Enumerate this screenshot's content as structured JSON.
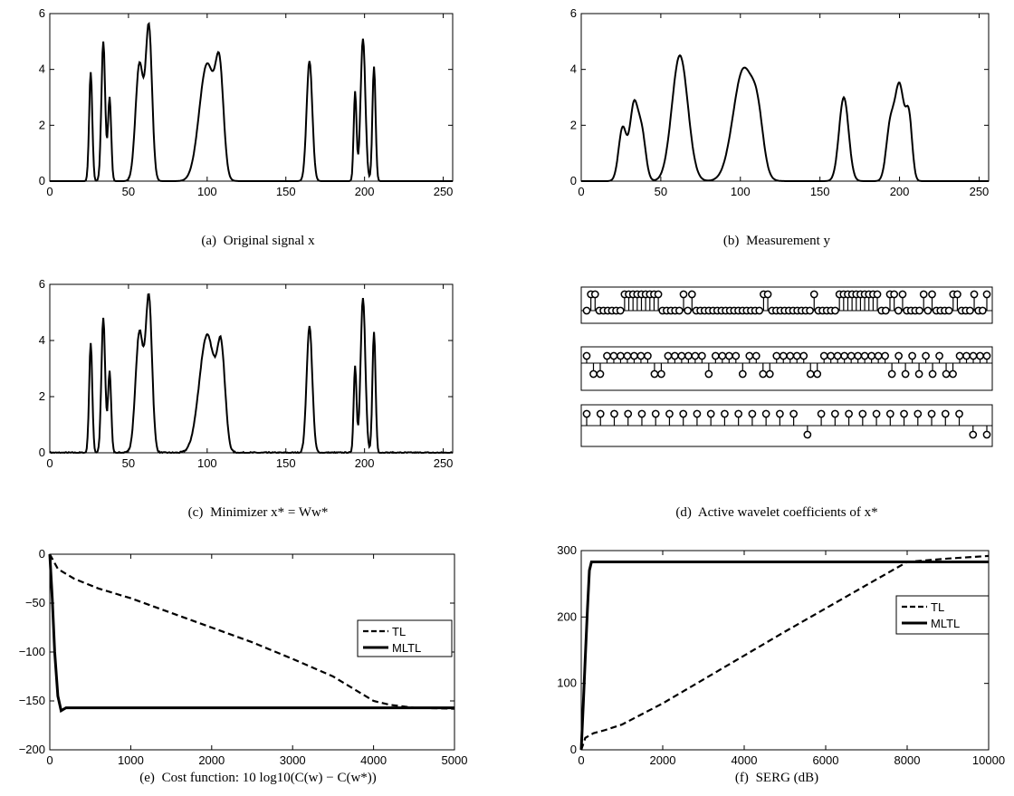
{
  "chart_data": [
    {
      "panel": "a",
      "type": "line",
      "caption": {
        "label": "(a)",
        "text": "Original signal x"
      },
      "xlim": [
        0,
        256
      ],
      "ylim": [
        0,
        6
      ],
      "xticks": [
        0,
        50,
        100,
        150,
        200,
        250
      ],
      "yticks": [
        0,
        2,
        4,
        6
      ],
      "series": [
        {
          "color": "#000000",
          "peaks": [
            [
              26,
              3.9,
              1.0
            ],
            [
              34,
              5.0,
              1.2
            ],
            [
              38,
              3.0,
              1.0
            ],
            [
              57,
              4.2,
              2.5
            ],
            [
              63,
              5.4,
              2.0
            ],
            [
              100,
              4.2,
              5.0
            ],
            [
              108,
              3.3,
              2.5
            ],
            [
              165,
              4.3,
              1.8
            ],
            [
              194,
              3.2,
              0.9
            ],
            [
              199,
              5.1,
              1.5
            ],
            [
              206,
              4.1,
              1.0
            ]
          ]
        }
      ]
    },
    {
      "panel": "b",
      "type": "line",
      "caption": {
        "label": "(b)",
        "text": "Measurement y"
      },
      "xlim": [
        0,
        256
      ],
      "ylim": [
        0,
        6
      ],
      "xticks": [
        0,
        50,
        100,
        150,
        200,
        250
      ],
      "yticks": [
        0,
        2,
        4,
        6
      ],
      "series": [
        {
          "color": "#000000",
          "peaks": [
            [
              26,
              1.9,
              2.5
            ],
            [
              33,
              2.6,
              2.5
            ],
            [
              38,
              1.7,
              2.5
            ],
            [
              62,
              4.5,
              5.0
            ],
            [
              102,
              4.0,
              6.5
            ],
            [
              111,
              1.5,
              3.5
            ],
            [
              165,
              3.0,
              3.0
            ],
            [
              194,
              1.8,
              2.5
            ],
            [
              200,
              3.4,
              3.0
            ],
            [
              206,
              2.1,
              2.0
            ]
          ]
        }
      ]
    },
    {
      "panel": "c",
      "type": "line",
      "caption": {
        "label": "(c)",
        "text": "Minimizer x* = Ww*"
      },
      "xlim": [
        0,
        256
      ],
      "ylim": [
        0,
        6
      ],
      "xticks": [
        0,
        50,
        100,
        150,
        200,
        250
      ],
      "yticks": [
        0,
        2,
        4,
        6
      ],
      "series": [
        {
          "color": "#000000",
          "peaks": [
            [
              26,
              3.9,
              1.0
            ],
            [
              34,
              4.8,
              1.2
            ],
            [
              38,
              2.9,
              1.0
            ],
            [
              57,
              4.3,
              2.5
            ],
            [
              63,
              5.4,
              2.0
            ],
            [
              100,
              4.2,
              5.0
            ],
            [
              109,
              3.2,
              2.5
            ],
            [
              165,
              4.5,
              1.8
            ],
            [
              194,
              3.1,
              0.9
            ],
            [
              199,
              5.5,
              1.5
            ],
            [
              206,
              4.3,
              1.0
            ]
          ],
          "noise": 0.05
        }
      ]
    },
    {
      "panel": "d",
      "type": "stem",
      "caption": {
        "label": "(d)",
        "text": "Active wavelet coefficients of x*"
      },
      "rows": [
        {
          "n": 64,
          "active": [
            1,
            2,
            9,
            10,
            11,
            12,
            13,
            14,
            15,
            16,
            17,
            23,
            25,
            42,
            43,
            54,
            60,
            61,
            62,
            63,
            64,
            65,
            66,
            67,
            68,
            69,
            72,
            73,
            75,
            80,
            82,
            87,
            88,
            92,
            95
          ]
        },
        {
          "n": 32,
          "up": [
            0,
            3,
            4,
            5,
            6,
            7,
            8,
            9,
            12,
            13,
            14,
            15,
            16,
            17,
            19,
            20,
            21,
            22,
            24,
            25,
            28,
            29,
            30,
            31,
            32,
            35,
            36,
            37,
            38,
            39,
            40,
            41,
            42,
            43,
            44,
            46,
            48,
            50,
            52,
            55,
            56,
            57,
            58,
            59
          ]
        },
        {
          "n": 16,
          "down": [
            16,
            28,
            29
          ]
        }
      ]
    },
    {
      "panel": "e",
      "type": "line",
      "caption": {
        "label": "(e)",
        "text": "Cost function: 10 log10(C(w) − C(w*))"
      },
      "xlim": [
        0,
        5000
      ],
      "ylim": [
        -200,
        0
      ],
      "xticks": [
        0,
        1000,
        2000,
        3000,
        4000,
        5000
      ],
      "yticks": [
        0,
        -50,
        -100,
        -150,
        -200
      ],
      "xtick_labels": [
        "0",
        "1000",
        "2000",
        "3000",
        "4000",
        "5000"
      ],
      "ytick_labels": [
        "0",
        "−50",
        "−100",
        "−150",
        "−200"
      ],
      "legend": {
        "position": "right",
        "entries": [
          "TL",
          "MLTL"
        ]
      },
      "series": [
        {
          "name": "TL",
          "style": "dashed",
          "color": "#000000",
          "x": [
            0,
            100,
            300,
            600,
            1000,
            1500,
            2000,
            2500,
            3000,
            3500,
            3800,
            4000,
            4200,
            4500,
            5000
          ],
          "y": [
            0,
            -15,
            -25,
            -35,
            -45,
            -60,
            -75,
            -90,
            -107,
            -125,
            -140,
            -150,
            -154,
            -157,
            -158
          ]
        },
        {
          "name": "MLTL",
          "style": "solid",
          "color": "#000000",
          "x": [
            0,
            30,
            60,
            100,
            140,
            200,
            1000,
            2000,
            3000,
            4000,
            5000
          ],
          "y": [
            0,
            -45,
            -100,
            -145,
            -160,
            -157,
            -157,
            -157,
            -157,
            -157,
            -157
          ]
        }
      ]
    },
    {
      "panel": "f",
      "type": "line",
      "caption": {
        "label": "(f)",
        "text": "SERG (dB)"
      },
      "xlim": [
        0,
        10000
      ],
      "ylim": [
        0,
        300
      ],
      "xticks": [
        0,
        2000,
        4000,
        6000,
        8000,
        10000
      ],
      "yticks": [
        0,
        100,
        200,
        300
      ],
      "legend": {
        "position": "right",
        "entries": [
          "TL",
          "MLTL"
        ]
      },
      "series": [
        {
          "name": "TL",
          "style": "dashed",
          "color": "#000000",
          "x": [
            0,
            100,
            300,
            600,
            1000,
            2000,
            3000,
            4000,
            5000,
            6000,
            7000,
            8000,
            9000,
            10000
          ],
          "y": [
            0,
            18,
            25,
            30,
            38,
            70,
            106,
            142,
            178,
            213,
            248,
            283,
            288,
            292
          ]
        },
        {
          "name": "MLTL",
          "style": "solid",
          "color": "#000000",
          "x": [
            0,
            50,
            100,
            150,
            200,
            250,
            1000,
            5000,
            10000
          ],
          "y": [
            0,
            70,
            140,
            210,
            270,
            283,
            283,
            283,
            283
          ]
        }
      ]
    }
  ]
}
